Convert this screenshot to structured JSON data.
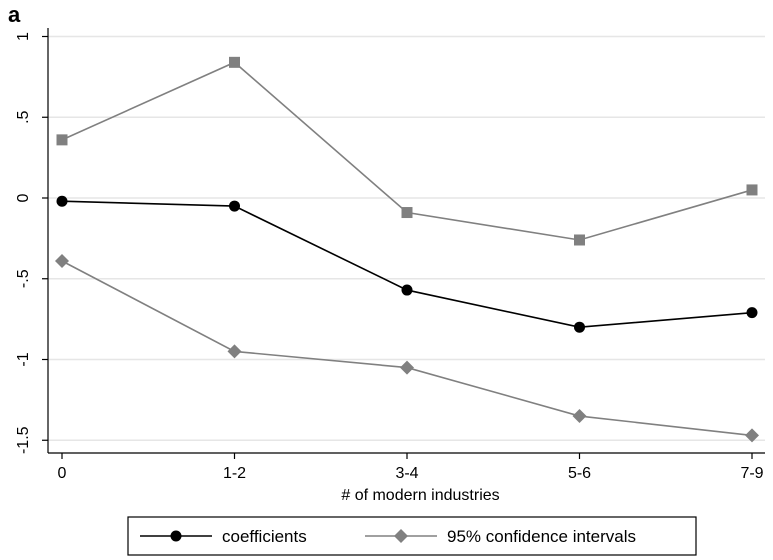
{
  "panel_label": "a",
  "colors": {
    "coefficients": "#000000",
    "ci": "#808080",
    "grid": "#e6e6e6",
    "axis": "#000000"
  },
  "chart_data": {
    "type": "line",
    "categories": [
      "0",
      "1-2",
      "3-4",
      "5-6",
      "7-9"
    ],
    "xlabel": "# of modern industries",
    "ylabel": "",
    "ylim": [
      -1.6,
      1.05
    ],
    "yticks": [
      1,
      0.5,
      0,
      -0.5,
      -1,
      -1.5
    ],
    "ytick_labels": [
      "1",
      ".5",
      "0",
      "-.5",
      "-1",
      "-1.5"
    ],
    "grid": true,
    "legend_position": "bottom",
    "series": [
      {
        "name": "coefficients",
        "marker": "circle",
        "values": [
          -0.02,
          -0.05,
          -0.57,
          -0.8,
          -0.71
        ]
      },
      {
        "name": "95% confidence intervals",
        "marker": "square",
        "values": [
          0.36,
          0.84,
          -0.09,
          -0.26,
          0.05
        ]
      },
      {
        "name": "",
        "marker": "diamond",
        "values": [
          -0.39,
          -0.95,
          -1.05,
          -1.35,
          -1.47
        ]
      }
    ],
    "legend": [
      {
        "label": "coefficients",
        "marker": "circle"
      },
      {
        "label": "95% confidence intervals",
        "marker": "diamond"
      }
    ]
  }
}
